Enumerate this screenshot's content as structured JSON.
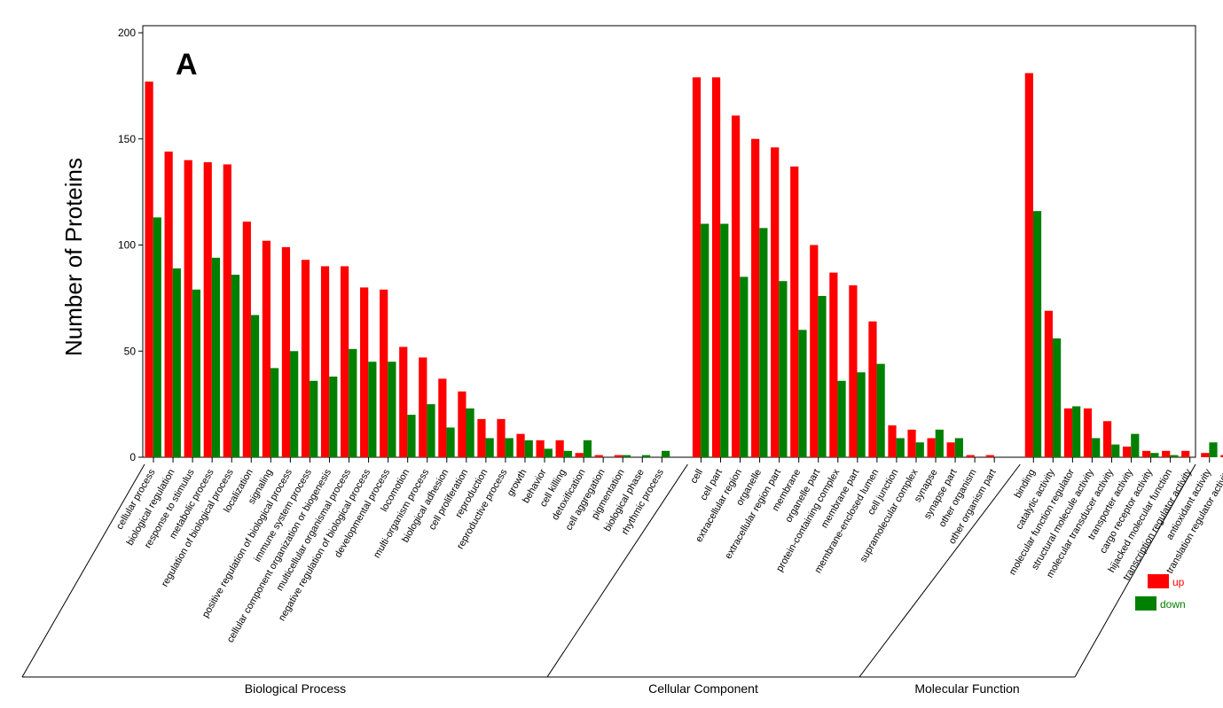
{
  "chart_data": {
    "type": "bar",
    "panel_label": "A",
    "ylabel": "Number of Proteins",
    "ylim": [
      0,
      200
    ],
    "yticks": [
      0,
      50,
      100,
      150,
      200
    ],
    "grid": false,
    "legend_position": "bottom-right",
    "series": [
      {
        "name": "up",
        "color": "#ff0000"
      },
      {
        "name": "down",
        "color": "#008000"
      }
    ],
    "groups": [
      {
        "name": "Biological Process",
        "categories": [
          {
            "label": "cellular process",
            "up": 177,
            "down": 113
          },
          {
            "label": "biological regulation",
            "up": 144,
            "down": 89
          },
          {
            "label": "response to stimulus",
            "up": 140,
            "down": 79
          },
          {
            "label": "metabolic process",
            "up": 139,
            "down": 94
          },
          {
            "label": "regulation of biological process",
            "up": 138,
            "down": 86
          },
          {
            "label": "localization",
            "up": 111,
            "down": 67
          },
          {
            "label": "signaling",
            "up": 102,
            "down": 42
          },
          {
            "label": "positive regulation of biological process",
            "up": 99,
            "down": 50
          },
          {
            "label": "immune system process",
            "up": 93,
            "down": 36
          },
          {
            "label": "cellular component organization or biogenesis",
            "up": 90,
            "down": 38
          },
          {
            "label": "multicellular organismal process",
            "up": 90,
            "down": 51
          },
          {
            "label": "negative regulation of biological process",
            "up": 80,
            "down": 45
          },
          {
            "label": "developmental process",
            "up": 79,
            "down": 45
          },
          {
            "label": "locomotion",
            "up": 52,
            "down": 20
          },
          {
            "label": "multi-organism process",
            "up": 47,
            "down": 25
          },
          {
            "label": "biological adhesion",
            "up": 37,
            "down": 14
          },
          {
            "label": "cell proliferation",
            "up": 31,
            "down": 23
          },
          {
            "label": "reproduction",
            "up": 18,
            "down": 9
          },
          {
            "label": "reproductive process",
            "up": 18,
            "down": 9
          },
          {
            "label": "growth",
            "up": 11,
            "down": 8
          },
          {
            "label": "behavior",
            "up": 8,
            "down": 4
          },
          {
            "label": "cell killing",
            "up": 8,
            "down": 3
          },
          {
            "label": "detoxification",
            "up": 2,
            "down": 8
          },
          {
            "label": "cell aggregation",
            "up": 1,
            "down": 0
          },
          {
            "label": "pigmentation",
            "up": 1,
            "down": 1
          },
          {
            "label": "biological phase",
            "up": 0,
            "down": 1
          },
          {
            "label": "rhythmic process",
            "up": 0,
            "down": 3
          }
        ]
      },
      {
        "name": "Cellular Component",
        "categories": [
          {
            "label": "cell",
            "up": 179,
            "down": 110
          },
          {
            "label": "cell part",
            "up": 179,
            "down": 110
          },
          {
            "label": "extracellular region",
            "up": 161,
            "down": 85
          },
          {
            "label": "organelle",
            "up": 150,
            "down": 108
          },
          {
            "label": "extracellular region part",
            "up": 146,
            "down": 83
          },
          {
            "label": "membrane",
            "up": 137,
            "down": 60
          },
          {
            "label": "organelle part",
            "up": 100,
            "down": 76
          },
          {
            "label": "protein-containing complex",
            "up": 87,
            "down": 36
          },
          {
            "label": "membrane part",
            "up": 81,
            "down": 40
          },
          {
            "label": "membrane-enclosed lumen",
            "up": 64,
            "down": 44
          },
          {
            "label": "cell junction",
            "up": 15,
            "down": 9
          },
          {
            "label": "supramolecular complex",
            "up": 13,
            "down": 7
          },
          {
            "label": "synapse",
            "up": 9,
            "down": 13
          },
          {
            "label": "synapse part",
            "up": 7,
            "down": 9
          },
          {
            "label": "other organism",
            "up": 1,
            "down": 0
          },
          {
            "label": "other organism part",
            "up": 1,
            "down": 0
          }
        ]
      },
      {
        "name": "Molecular Function",
        "categories": [
          {
            "label": "binding",
            "up": 181,
            "down": 116
          },
          {
            "label": "catalytic activity",
            "up": 69,
            "down": 56
          },
          {
            "label": "molecular function regulator",
            "up": 23,
            "down": 24
          },
          {
            "label": "structural molecule activity",
            "up": 23,
            "down": 9
          },
          {
            "label": "molecular transducer activity",
            "up": 17,
            "down": 6
          },
          {
            "label": "transporter activity",
            "up": 5,
            "down": 11
          },
          {
            "label": "cargo receptor activity",
            "up": 3,
            "down": 2
          },
          {
            "label": "hijacked molecular function",
            "up": 3,
            "down": 1
          },
          {
            "label": "transcription regulator activity",
            "up": 3,
            "down": 0
          },
          {
            "label": "antioxidant activity",
            "up": 2,
            "down": 7
          },
          {
            "label": "translation regulator activity",
            "up": 1,
            "down": 1
          }
        ]
      }
    ]
  }
}
